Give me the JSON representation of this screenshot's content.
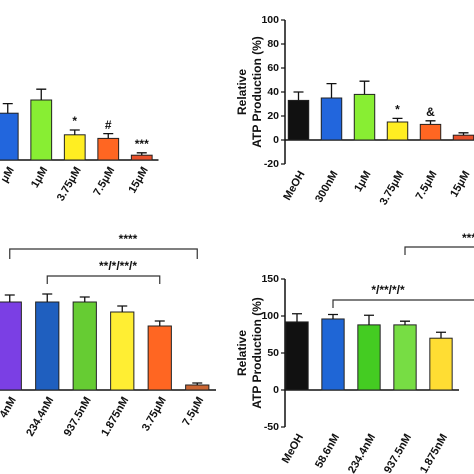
{
  "chart_data": [
    {
      "type": "bar",
      "categories": [
        "μM",
        "1μM",
        "3.75μM",
        "7.5μM",
        "15μM"
      ],
      "series": [
        {
          "values": [
            39,
            50,
            21,
            18,
            4
          ],
          "errors": [
            8,
            9,
            4,
            4,
            2
          ],
          "colors": [
            "#2266dd",
            "#88ee33",
            "#ffee22",
            "#ff6622",
            "#e8502a"
          ]
        }
      ],
      "bar_annotations": [
        null,
        null,
        "*",
        "#",
        "***"
      ],
      "ylim": [
        0,
        100
      ]
    },
    {
      "type": "bar",
      "categories": [
        "MeOH",
        "300nM",
        "1μM",
        "3.75μM",
        "7.5μM",
        "15μM"
      ],
      "ylabel": [
        "Relative",
        "ATP Production (%)"
      ],
      "series": [
        {
          "values": [
            33,
            35,
            38,
            15,
            13,
            4
          ],
          "errors": [
            7,
            12,
            11,
            3,
            3,
            2
          ],
          "colors": [
            "#111111",
            "#2266dd",
            "#88ee33",
            "#ffee22",
            "#ff6622",
            "#e8502a"
          ]
        }
      ],
      "bar_annotations": [
        null,
        null,
        null,
        "*",
        "&",
        null
      ],
      "ylim": [
        -20,
        100
      ],
      "yticks": [
        -20,
        0,
        20,
        40,
        60,
        80,
        100
      ]
    },
    {
      "type": "bar",
      "categories": [
        "4nM",
        "234.4nM",
        "937.5nM",
        "1.875nM",
        "3.75μM",
        "7.5μM"
      ],
      "series": [
        {
          "values": [
            88,
            88,
            88,
            78,
            64,
            5
          ],
          "errors": [
            7,
            8,
            5,
            6,
            5,
            2
          ],
          "colors": [
            "#7b3fe4",
            "#1f5fbf",
            "#66cc33",
            "#ffee33",
            "#ff6622",
            "#cc6633"
          ]
        }
      ],
      "brackets": [
        "****",
        "**/*/**/*"
      ],
      "ylim": [
        0,
        100
      ]
    },
    {
      "type": "bar",
      "categories": [
        "MeOH",
        "58.6nM",
        "234.4nM",
        "937.5nM",
        "1.875nM"
      ],
      "ylabel": [
        "Relative",
        "ATP Production (%)"
      ],
      "series": [
        {
          "values": [
            92,
            96,
            88,
            88,
            70
          ],
          "errors": [
            11,
            6,
            13,
            5,
            8
          ],
          "colors": [
            "#111111",
            "#1f66d6",
            "#44cc22",
            "#77dd44",
            "#ffdd33"
          ]
        }
      ],
      "brackets": [
        "****",
        "*/**/*/*"
      ],
      "ylim": [
        -50,
        150
      ],
      "yticks": [
        -50,
        0,
        50,
        100,
        150
      ]
    }
  ]
}
